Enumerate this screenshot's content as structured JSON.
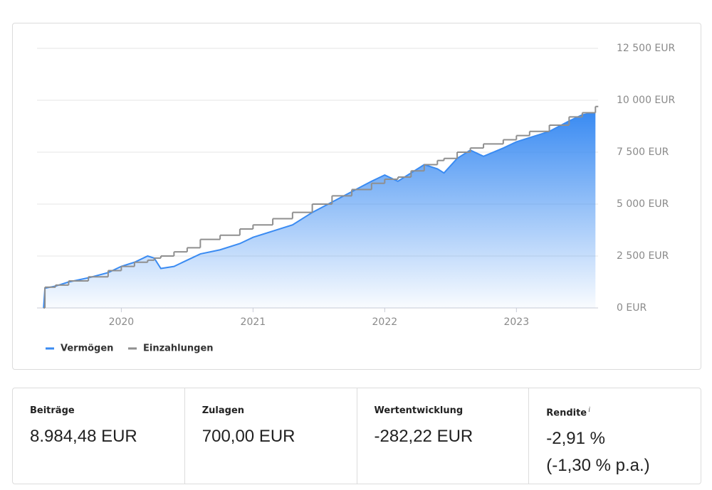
{
  "chart_data": {
    "type": "line",
    "x": [
      2019.41,
      2019.42,
      2019.5,
      2019.6,
      2019.75,
      2019.9,
      2020.0,
      2020.1,
      2020.2,
      2020.25,
      2020.3,
      2020.4,
      2020.5,
      2020.6,
      2020.75,
      2020.9,
      2021.0,
      2021.15,
      2021.3,
      2021.45,
      2021.6,
      2021.75,
      2021.9,
      2022.0,
      2022.1,
      2022.2,
      2022.3,
      2022.4,
      2022.45,
      2022.55,
      2022.65,
      2022.75,
      2022.9,
      2023.0,
      2023.1,
      2023.25,
      2023.4,
      2023.5,
      2023.6
    ],
    "series": [
      {
        "name": "Vermögen",
        "color": "#3a8bf2",
        "fill": "area",
        "values": [
          0,
          950,
          1050,
          1250,
          1450,
          1700,
          2000,
          2200,
          2500,
          2400,
          1900,
          2000,
          2300,
          2600,
          2800,
          3100,
          3400,
          3700,
          4000,
          4600,
          5100,
          5600,
          6100,
          6400,
          6100,
          6500,
          6900,
          6700,
          6500,
          7200,
          7600,
          7300,
          7700,
          8000,
          8200,
          8500,
          9000,
          9300,
          9400
        ]
      },
      {
        "name": "Einzahlungen",
        "color": "#8f8f8f",
        "step": true,
        "values": [
          0,
          1000,
          1100,
          1300,
          1500,
          1800,
          2000,
          2200,
          2300,
          2400,
          2500,
          2700,
          2900,
          3300,
          3500,
          3800,
          4000,
          4300,
          4600,
          5000,
          5400,
          5700,
          6000,
          6200,
          6300,
          6600,
          6900,
          7100,
          7200,
          7500,
          7700,
          7900,
          8100,
          8300,
          8500,
          8800,
          9200,
          9400,
          9700
        ]
      }
    ],
    "xlim": [
      2019.36,
      2023.62
    ],
    "ylim": [
      0,
      12500
    ],
    "xticks": [
      2020,
      2021,
      2022,
      2023
    ],
    "yticks": [
      {
        "value": 0,
        "label": "0 EUR"
      },
      {
        "value": 2500,
        "label": "2 500 EUR"
      },
      {
        "value": 5000,
        "label": "5 000 EUR"
      },
      {
        "value": 7500,
        "label": "7 500 EUR"
      },
      {
        "value": 10000,
        "label": "10 000 EUR"
      },
      {
        "value": 12500,
        "label": "12 500 EUR"
      }
    ],
    "grid": true,
    "legend": "bottom-left"
  },
  "stats": [
    {
      "label": "Beiträge",
      "value": "8.984,48 EUR"
    },
    {
      "label": "Zulagen",
      "value": "700,00 EUR"
    },
    {
      "label": "Wertentwicklung",
      "value": "-282,22 EUR"
    },
    {
      "label": "Rendite",
      "info": "i",
      "value": "-2,91 %",
      "detail": "(-1,30 % p.a.)"
    }
  ]
}
